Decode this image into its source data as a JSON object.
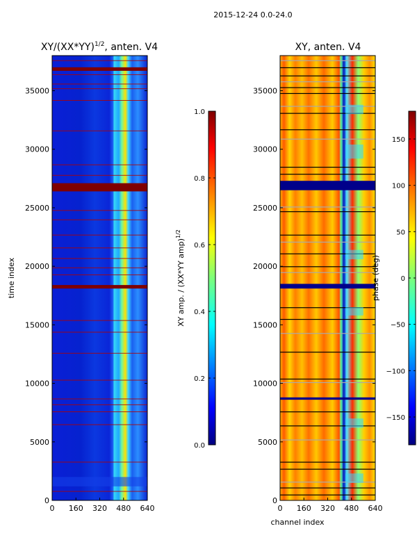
{
  "figure": {
    "suptitle": "2015-12-24 0.0-24.0"
  },
  "chart_data": [
    {
      "type": "heatmap",
      "title": "XY/(XX*YY)$^{1/2}$, anten. V4",
      "title_main": "XY/(XX*YY)",
      "title_exp": "1/2",
      "title_tail": ", anten. V4",
      "xlabel": "",
      "ylabel": "time index",
      "xlim": [
        0,
        640
      ],
      "ylim": [
        0,
        38000
      ],
      "xticks": [
        "0",
        "160",
        "320",
        "480",
        "640"
      ],
      "yticks": [
        "0",
        "5000",
        "10000",
        "15000",
        "20000",
        "25000",
        "30000",
        "35000"
      ],
      "colormap": "jet",
      "colorbar": {
        "label": "XY amp. / (XX*YY amp)$^{1/2}$",
        "label_main": "XY amp. / (XX*YY amp)",
        "label_exp": "1/2",
        "range": [
          0.0,
          1.0
        ],
        "ticks": [
          "0.0",
          "0.2",
          "0.4",
          "0.6",
          "0.8",
          "1.0"
        ]
      },
      "bands": [
        {
          "x0": 390,
          "x1": 470,
          "value": 0.45,
          "note": "bright channel band"
        },
        {
          "x0": 480,
          "x1": 620,
          "value": 0.25,
          "note": "moderate channel band"
        }
      ],
      "flag_rows": [
        {
          "y0": 26400,
          "y1": 27100,
          "value": 1.0
        },
        {
          "y0": 18100,
          "y1": 18400,
          "value": 1.0
        },
        {
          "y0": 36700,
          "y1": 37000,
          "value": 1.0
        }
      ]
    },
    {
      "type": "heatmap",
      "title": "XY, anten. V4",
      "xlabel": "channel index",
      "ylabel": "",
      "xlim": [
        0,
        640
      ],
      "ylim": [
        0,
        38000
      ],
      "xticks": [
        "0",
        "160",
        "320",
        "480",
        "640"
      ],
      "yticks": [
        "0",
        "5000",
        "10000",
        "15000",
        "20000",
        "25000",
        "30000",
        "35000"
      ],
      "colormap": "jet",
      "colorbar": {
        "label": "phase (deg)",
        "range": [
          -180,
          180
        ],
        "ticks": [
          "−150",
          "−100",
          "−50",
          "0",
          "50",
          "100",
          "150"
        ],
        "tick_values": [
          -150,
          -100,
          -50,
          0,
          50,
          100,
          150
        ]
      },
      "gaps": [
        {
          "y0": 26500,
          "y1": 27300
        },
        {
          "y0": 18100,
          "y1": 18500
        },
        {
          "y0": 8600,
          "y1": 8800
        }
      ]
    }
  ]
}
